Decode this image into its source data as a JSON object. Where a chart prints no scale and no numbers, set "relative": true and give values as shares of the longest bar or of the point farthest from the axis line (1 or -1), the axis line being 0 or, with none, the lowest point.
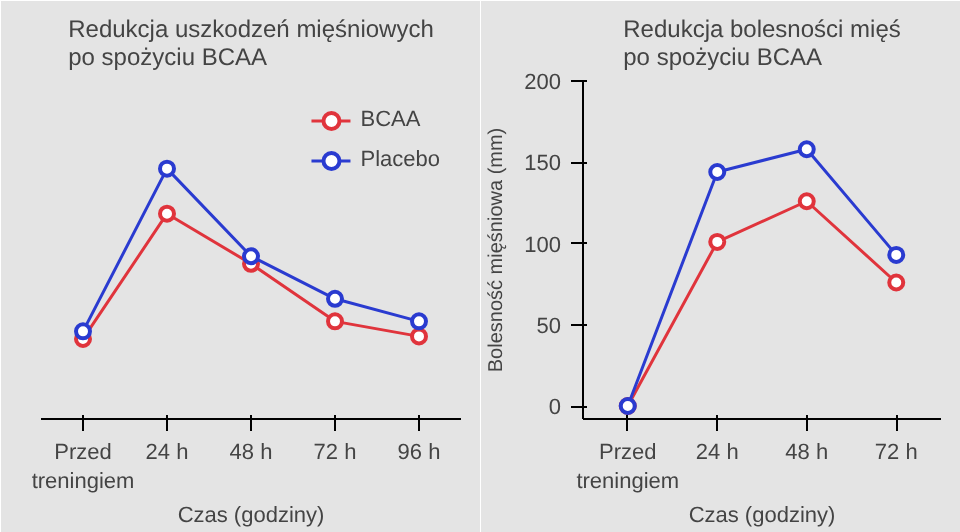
{
  "chart_data": [
    {
      "type": "line",
      "title": "Redukcja uszkodzeń mięśniowych\npo spożyciu BCAA",
      "xlabel": "Czas (godziny)",
      "categories": [
        "Przed\ntreningiem",
        "24 h",
        "48 h",
        "72 h",
        "96 h"
      ],
      "relative": true,
      "marker": "circle",
      "legend": "top right",
      "series": [
        {
          "name": "BCAA",
          "color": "#e0343c",
          "values": [
            0.32,
            0.82,
            0.62,
            0.39,
            0.33
          ]
        },
        {
          "name": "Placebo",
          "color": "#2a3bd0",
          "values": [
            0.35,
            1,
            0.65,
            0.48,
            0.39
          ]
        }
      ]
    },
    {
      "type": "line",
      "title": "Redukcja bolesności mięś\npo spożyciu BCAA",
      "xlabel": "Czas (godziny)",
      "ylabel": "Bolesność mięśniowa (mm)",
      "categories": [
        "Przed\ntreningiem",
        "24 h",
        "48 h",
        "72 h"
      ],
      "ylim": [
        -8,
        200
      ],
      "yticks": [
        0,
        50,
        100,
        150,
        200
      ],
      "marker": "circle",
      "series": [
        {
          "color": "#e0343c",
          "values": [
            0,
            101,
            126,
            76
          ]
        },
        {
          "color": "#2a3bd0",
          "values": [
            0,
            144,
            158,
            93
          ]
        }
      ]
    }
  ]
}
